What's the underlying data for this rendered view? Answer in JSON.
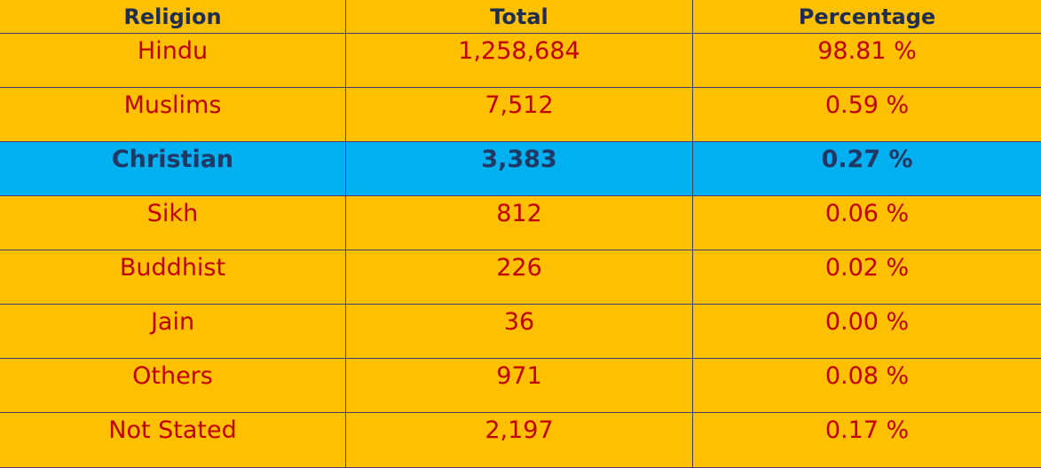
{
  "table": {
    "header": [
      "Religion",
      "Total",
      "Percentage"
    ],
    "rows": [
      [
        "Hindu",
        "1,258,684",
        "98.81 %"
      ],
      [
        "Muslims",
        "7,512",
        "0.59 %"
      ],
      [
        "Christian",
        "3,383",
        "0.27 %"
      ],
      [
        "Sikh",
        "812",
        "0.06 %"
      ],
      [
        "Buddhist",
        "226",
        "0.02 %"
      ],
      [
        "Jain",
        "36",
        "0.00 %"
      ],
      [
        "Others",
        "971",
        "0.08 %"
      ],
      [
        "Not Stated",
        "2,197",
        "0.17 %"
      ]
    ]
  }
}
